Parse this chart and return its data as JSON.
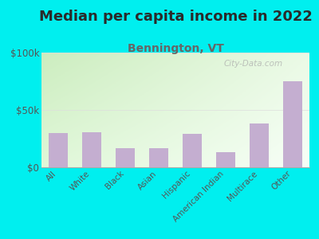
{
  "title": "Median per capita income in 2022",
  "subtitle": "Bennington, VT",
  "categories": [
    "All",
    "White",
    "Black",
    "Asian",
    "Hispanic",
    "American Indian",
    "Multirace",
    "Other"
  ],
  "values": [
    30000,
    30500,
    17000,
    17000,
    29000,
    13000,
    38000,
    75000
  ],
  "bar_color": "#c4aed0",
  "background_color": "#00EFEF",
  "plot_bg_color_top_left": "#cdeac0",
  "plot_bg_color_bottom_right": "#f5fff8",
  "title_color": "#2a2a2a",
  "subtitle_color": "#666666",
  "tick_label_color": "#555555",
  "ytick_labels": [
    "$0",
    "$50k",
    "$100k"
  ],
  "yticks": [
    0,
    50000,
    100000
  ],
  "ylim": [
    0,
    100000
  ],
  "watermark": "City-Data.com",
  "title_fontsize": 13,
  "subtitle_fontsize": 10,
  "grid_color": "#dddddd",
  "spine_color": "#aaaaaa"
}
